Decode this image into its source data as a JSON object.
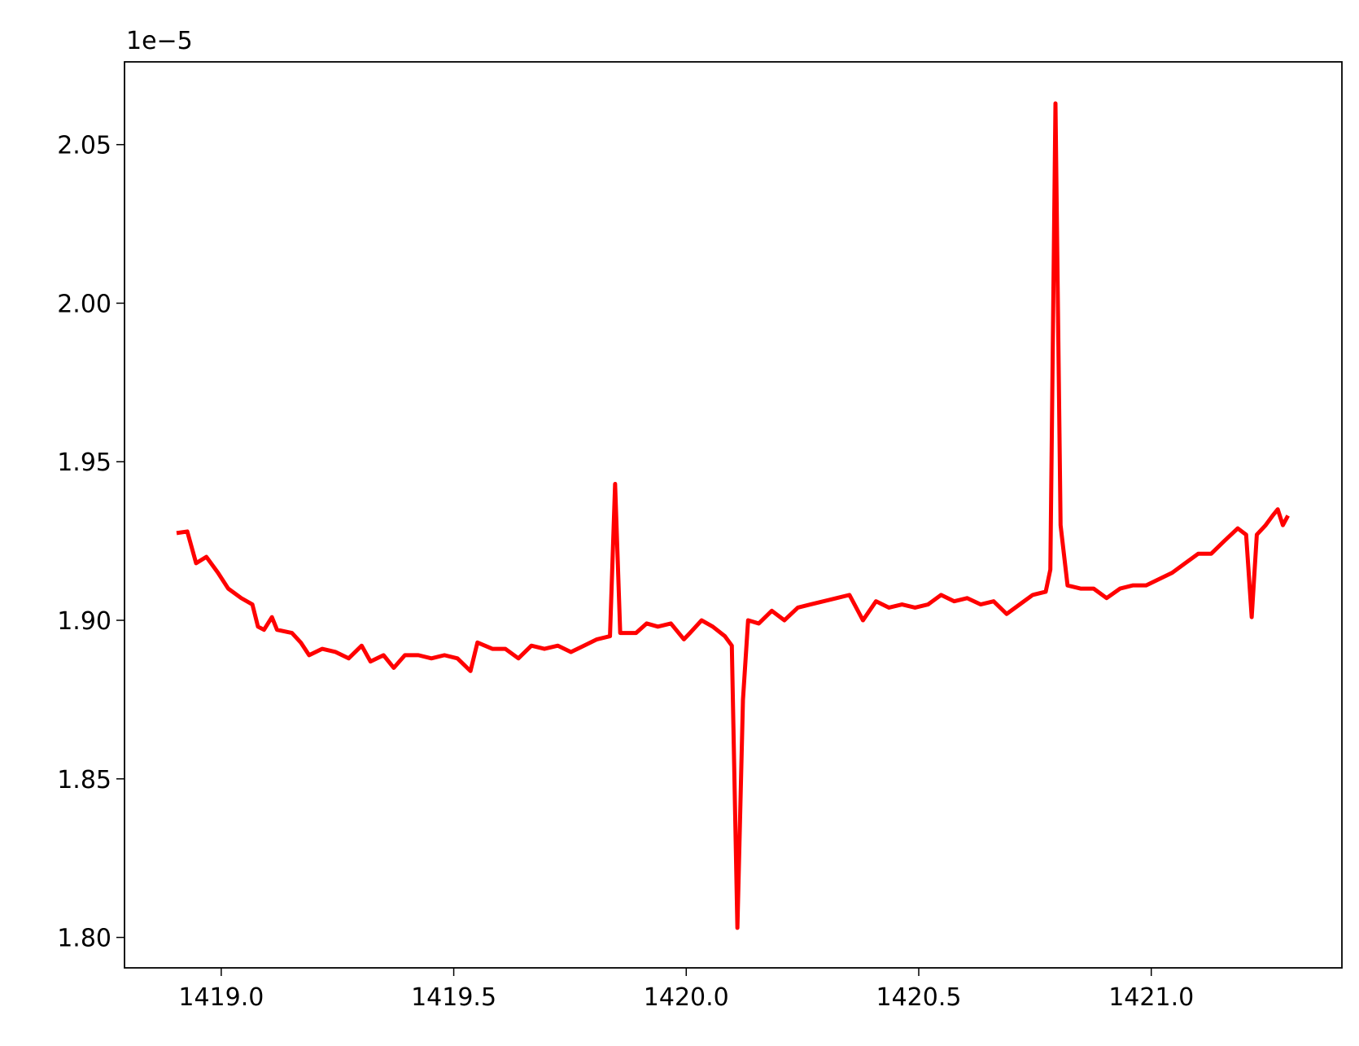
{
  "chart_data": {
    "type": "line",
    "offset_text": "1e−5",
    "color": "#ff0000",
    "x": [
      1418.904,
      1418.927,
      1418.946,
      1418.968,
      1418.993,
      1419.015,
      1419.043,
      1419.067,
      1419.079,
      1419.092,
      1419.109,
      1419.12,
      1419.152,
      1419.171,
      1419.189,
      1419.217,
      1419.246,
      1419.274,
      1419.302,
      1419.321,
      1419.349,
      1419.371,
      1419.395,
      1419.424,
      1419.452,
      1419.48,
      1419.508,
      1419.536,
      1419.551,
      1419.583,
      1419.611,
      1419.639,
      1419.667,
      1419.695,
      1419.724,
      1419.752,
      1419.78,
      1419.808,
      1419.836,
      1419.847,
      1419.858,
      1419.892,
      1419.915,
      1419.939,
      1419.967,
      1419.995,
      1420.008,
      1420.033,
      1420.057,
      1420.083,
      1420.098,
      1420.11,
      1420.122,
      1420.133,
      1420.156,
      1420.184,
      1420.211,
      1420.24,
      1420.267,
      1420.295,
      1420.323,
      1420.351,
      1420.38,
      1420.408,
      1420.436,
      1420.464,
      1420.492,
      1420.52,
      1420.548,
      1420.576,
      1420.604,
      1420.633,
      1420.661,
      1420.689,
      1420.717,
      1420.745,
      1420.773,
      1420.783,
      1420.794,
      1420.805,
      1420.82,
      1420.848,
      1420.876,
      1420.904,
      1420.933,
      1420.96,
      1420.989,
      1421.017,
      1421.045,
      1421.073,
      1421.101,
      1421.129,
      1421.157,
      1421.186,
      1421.204,
      1421.216,
      1421.227,
      1421.246,
      1421.261,
      1421.272,
      1421.283,
      1421.294
    ],
    "values": [
      1.9275,
      1.928,
      1.918,
      1.92,
      1.915,
      1.91,
      1.907,
      1.905,
      1.898,
      1.897,
      1.901,
      1.897,
      1.896,
      1.893,
      1.889,
      1.891,
      1.89,
      1.888,
      1.892,
      1.887,
      1.889,
      1.885,
      1.889,
      1.889,
      1.888,
      1.889,
      1.888,
      1.884,
      1.893,
      1.891,
      1.891,
      1.888,
      1.892,
      1.891,
      1.892,
      1.89,
      1.892,
      1.894,
      1.895,
      1.943,
      1.896,
      1.896,
      1.899,
      1.898,
      1.899,
      1.894,
      1.896,
      1.9,
      1.898,
      1.895,
      1.892,
      1.803,
      1.875,
      1.9,
      1.899,
      1.903,
      1.9,
      1.904,
      1.905,
      1.906,
      1.907,
      1.908,
      1.9,
      1.906,
      1.904,
      1.905,
      1.904,
      1.905,
      1.908,
      1.906,
      1.907,
      1.905,
      1.906,
      1.902,
      1.905,
      1.908,
      1.909,
      1.916,
      2.063,
      1.93,
      1.911,
      1.91,
      1.91,
      1.907,
      1.91,
      1.911,
      1.911,
      1.913,
      1.915,
      1.918,
      1.921,
      1.921,
      1.925,
      1.929,
      1.927,
      1.901,
      1.927,
      1.93,
      1.933,
      1.935,
      1.93,
      1.933
    ],
    "xlim": [
      1418.792,
      1421.41
    ],
    "ylim": [
      1.7904,
      2.0761
    ],
    "xticks": [
      {
        "value": 1419,
        "label": "1419.0"
      },
      {
        "value": 1419.5,
        "label": "1419.5"
      },
      {
        "value": 1420,
        "label": "1420.0"
      },
      {
        "value": 1420.5,
        "label": "1420.5"
      },
      {
        "value": 1421,
        "label": "1421.0"
      }
    ],
    "yticks": [
      {
        "value": 1.8,
        "label": "1.80"
      },
      {
        "value": 1.85,
        "label": "1.85"
      },
      {
        "value": 1.9,
        "label": "1.90"
      },
      {
        "value": 1.95,
        "label": "1.95"
      },
      {
        "value": 2.0,
        "label": "2.00"
      },
      {
        "value": 2.05,
        "label": "2.05"
      }
    ],
    "grid": false
  }
}
